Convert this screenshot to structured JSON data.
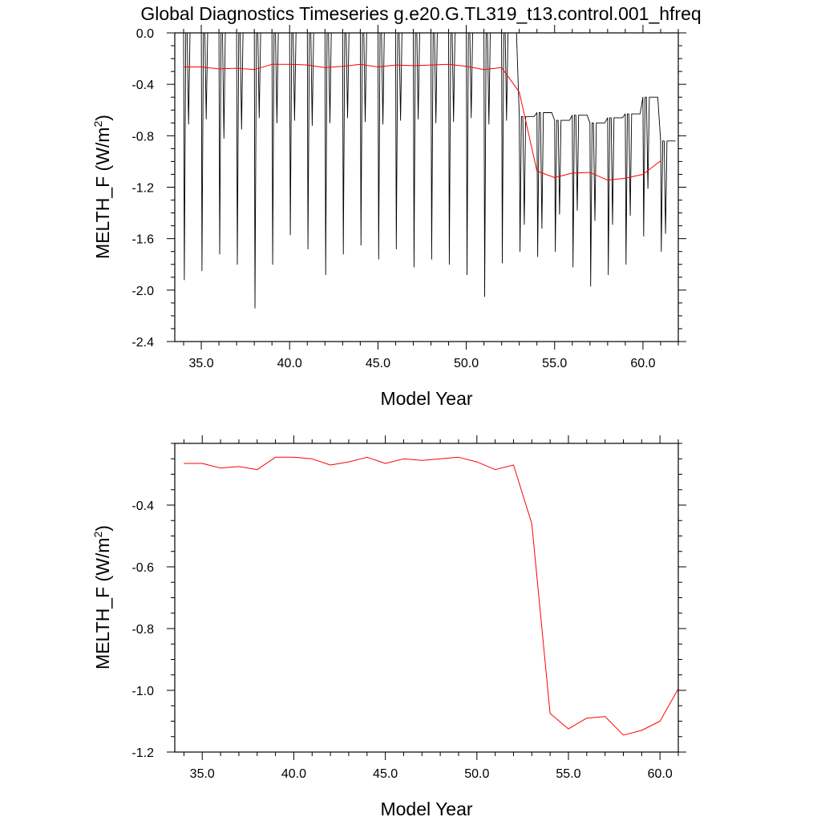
{
  "title": "Global Diagnostics Timeseries g.e20.G.TL319_t13.control.001_hfreq",
  "colors": {
    "monthly": "#000000",
    "annual": "#ff0000",
    "axes": "#000000"
  },
  "chart_data": [
    {
      "type": "line",
      "xlabel": "Model Year",
      "ylabel_main": "MELTH_F (W/m",
      "ylabel_sup": "2",
      "ylabel_end": ")",
      "xlim": [
        33.5,
        62.0
      ],
      "ylim": [
        -2.4,
        0.0
      ],
      "x_ticks": [
        35,
        40,
        45,
        50,
        55,
        60
      ],
      "x_tick_labels": [
        "35.0",
        "40.0",
        "45.0",
        "50.0",
        "55.0",
        "60.0"
      ],
      "y_ticks": [
        0.0,
        -0.4,
        -0.8,
        -1.2,
        -1.6,
        -2.0,
        -2.4
      ],
      "y_tick_labels": [
        "0.0",
        "-0.4",
        "-0.8",
        "-1.2",
        "-1.6",
        "-2.0",
        "-2.4"
      ],
      "series": [
        {
          "role": "monthly",
          "start_year": 34.0,
          "annual_minima": [
            -1.92,
            -1.85,
            -1.72,
            -1.8,
            -2.14,
            -1.8,
            -1.57,
            -1.68,
            -1.88,
            -1.72,
            -1.65,
            -1.76,
            -1.68,
            -1.82,
            -1.76,
            -1.8,
            -1.88,
            -2.05,
            -1.79,
            -1.7,
            -1.74,
            -1.7,
            -1.82,
            -1.97,
            -1.88,
            -1.8,
            -1.58,
            -1.7
          ],
          "annual_secondary": [
            -0.71,
            -0.67,
            -0.82,
            -0.75,
            -0.66,
            -0.7,
            -0.68,
            -0.72,
            -0.7,
            -0.66,
            -0.69,
            -0.71,
            -0.68,
            -0.67,
            -0.7,
            -0.69,
            -0.66,
            -0.71,
            -0.68,
            -1.49,
            -1.52,
            -1.41,
            -1.38,
            -1.46,
            -1.49,
            -1.42,
            -1.21,
            -1.56
          ],
          "annual_maxima": [
            0.0,
            0.0,
            0.0,
            0.0,
            0.0,
            0.0,
            0.0,
            0.0,
            0.0,
            0.0,
            0.0,
            0.0,
            0.0,
            0.0,
            0.0,
            0.0,
            0.0,
            0.0,
            0.0,
            -0.65,
            -0.62,
            -0.68,
            -0.64,
            -0.7,
            -0.66,
            -0.63,
            -0.5,
            -0.84
          ]
        },
        {
          "role": "annual",
          "x": [
            34,
            35,
            36,
            37,
            38,
            39,
            40,
            41,
            42,
            43,
            44,
            45,
            46,
            47,
            48,
            49,
            50,
            51,
            52,
            53,
            54,
            55,
            56,
            57,
            58,
            59,
            60,
            61
          ],
          "y": [
            -0.265,
            -0.265,
            -0.28,
            -0.275,
            -0.285,
            -0.245,
            -0.245,
            -0.25,
            -0.27,
            -0.26,
            -0.245,
            -0.265,
            -0.25,
            -0.255,
            -0.25,
            -0.245,
            -0.26,
            -0.285,
            -0.27,
            -0.46,
            -1.075,
            -1.125,
            -1.09,
            -1.085,
            -1.145,
            -1.13,
            -1.1,
            -0.995
          ]
        }
      ]
    },
    {
      "type": "line",
      "xlabel": "Model Year",
      "ylabel_main": "MELTH_F (W/m",
      "ylabel_sup": "2",
      "ylabel_end": ")",
      "xlim": [
        33.5,
        61.0
      ],
      "ylim": [
        -1.2,
        -0.2
      ],
      "x_ticks": [
        35,
        40,
        45,
        50,
        55,
        60
      ],
      "x_tick_labels": [
        "35.0",
        "40.0",
        "45.0",
        "50.0",
        "55.0",
        "60.0"
      ],
      "y_ticks": [
        -0.4,
        -0.6,
        -0.8,
        -1.0,
        -1.2
      ],
      "y_tick_labels": [
        "-0.4",
        "-0.6",
        "-0.8",
        "-1.0",
        "-1.2"
      ],
      "series": [
        {
          "role": "annual",
          "x": [
            34,
            35,
            36,
            37,
            38,
            39,
            40,
            41,
            42,
            43,
            44,
            45,
            46,
            47,
            48,
            49,
            50,
            51,
            52,
            53,
            54,
            55,
            56,
            57,
            58,
            59,
            60,
            61
          ],
          "y": [
            -0.265,
            -0.265,
            -0.28,
            -0.275,
            -0.285,
            -0.245,
            -0.245,
            -0.25,
            -0.27,
            -0.26,
            -0.245,
            -0.265,
            -0.25,
            -0.255,
            -0.25,
            -0.245,
            -0.26,
            -0.285,
            -0.27,
            -0.46,
            -1.075,
            -1.125,
            -1.09,
            -1.085,
            -1.145,
            -1.13,
            -1.1,
            -0.995
          ]
        }
      ]
    }
  ]
}
